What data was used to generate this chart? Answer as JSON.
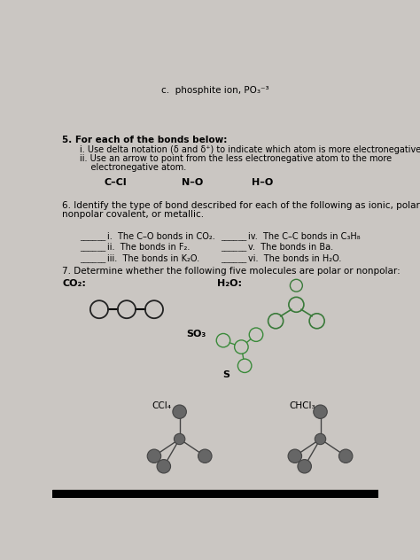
{
  "bg_color": "#cac6c2",
  "title_c": "c.  phosphite ion, PO₃⁻³",
  "q5_header": "5. For each of the bonds below:",
  "q5_i": "i. Use delta notation (δ and δ⁺) to indicate which atom is more electronegative, and",
  "q5_ii_a": "ii. Use an arrow to point from the less electronegative atom to the more",
  "q5_ii_b": "    electronegative atom.",
  "bond1": "C–Cl",
  "bond2": "N–O",
  "bond3": "H–O",
  "q6_header1": "6. Identify the type of bond described for each of the following as ionic, polar covalent,",
  "q6_header2": "nonpolar covalent, or metallic.",
  "q6_left": [
    "i.  The C–O bonds in CO₂.",
    "ii.  The bonds in F₂.",
    "iii.  The bonds in K₂O."
  ],
  "q6_right": [
    "iv.  The C–C bonds in C₃H₈",
    "v.  The bonds in Ba.",
    "vi.  The bonds in H₂O."
  ],
  "q7_header": "7. Determine whether the following five molecules are polar or nonpolar:",
  "co2_label": "CO₂:",
  "h2o_label": "H₂O:",
  "so3_label": "SO₃",
  "s_label": "S",
  "ccl4_label": "CCl₄",
  "chcl3_label": "CHCl₃",
  "so3_color": "#3a8a3a",
  "h2o_color": "#3a7a3a",
  "mol_dark": "#444444",
  "mol_fill": "#666666"
}
